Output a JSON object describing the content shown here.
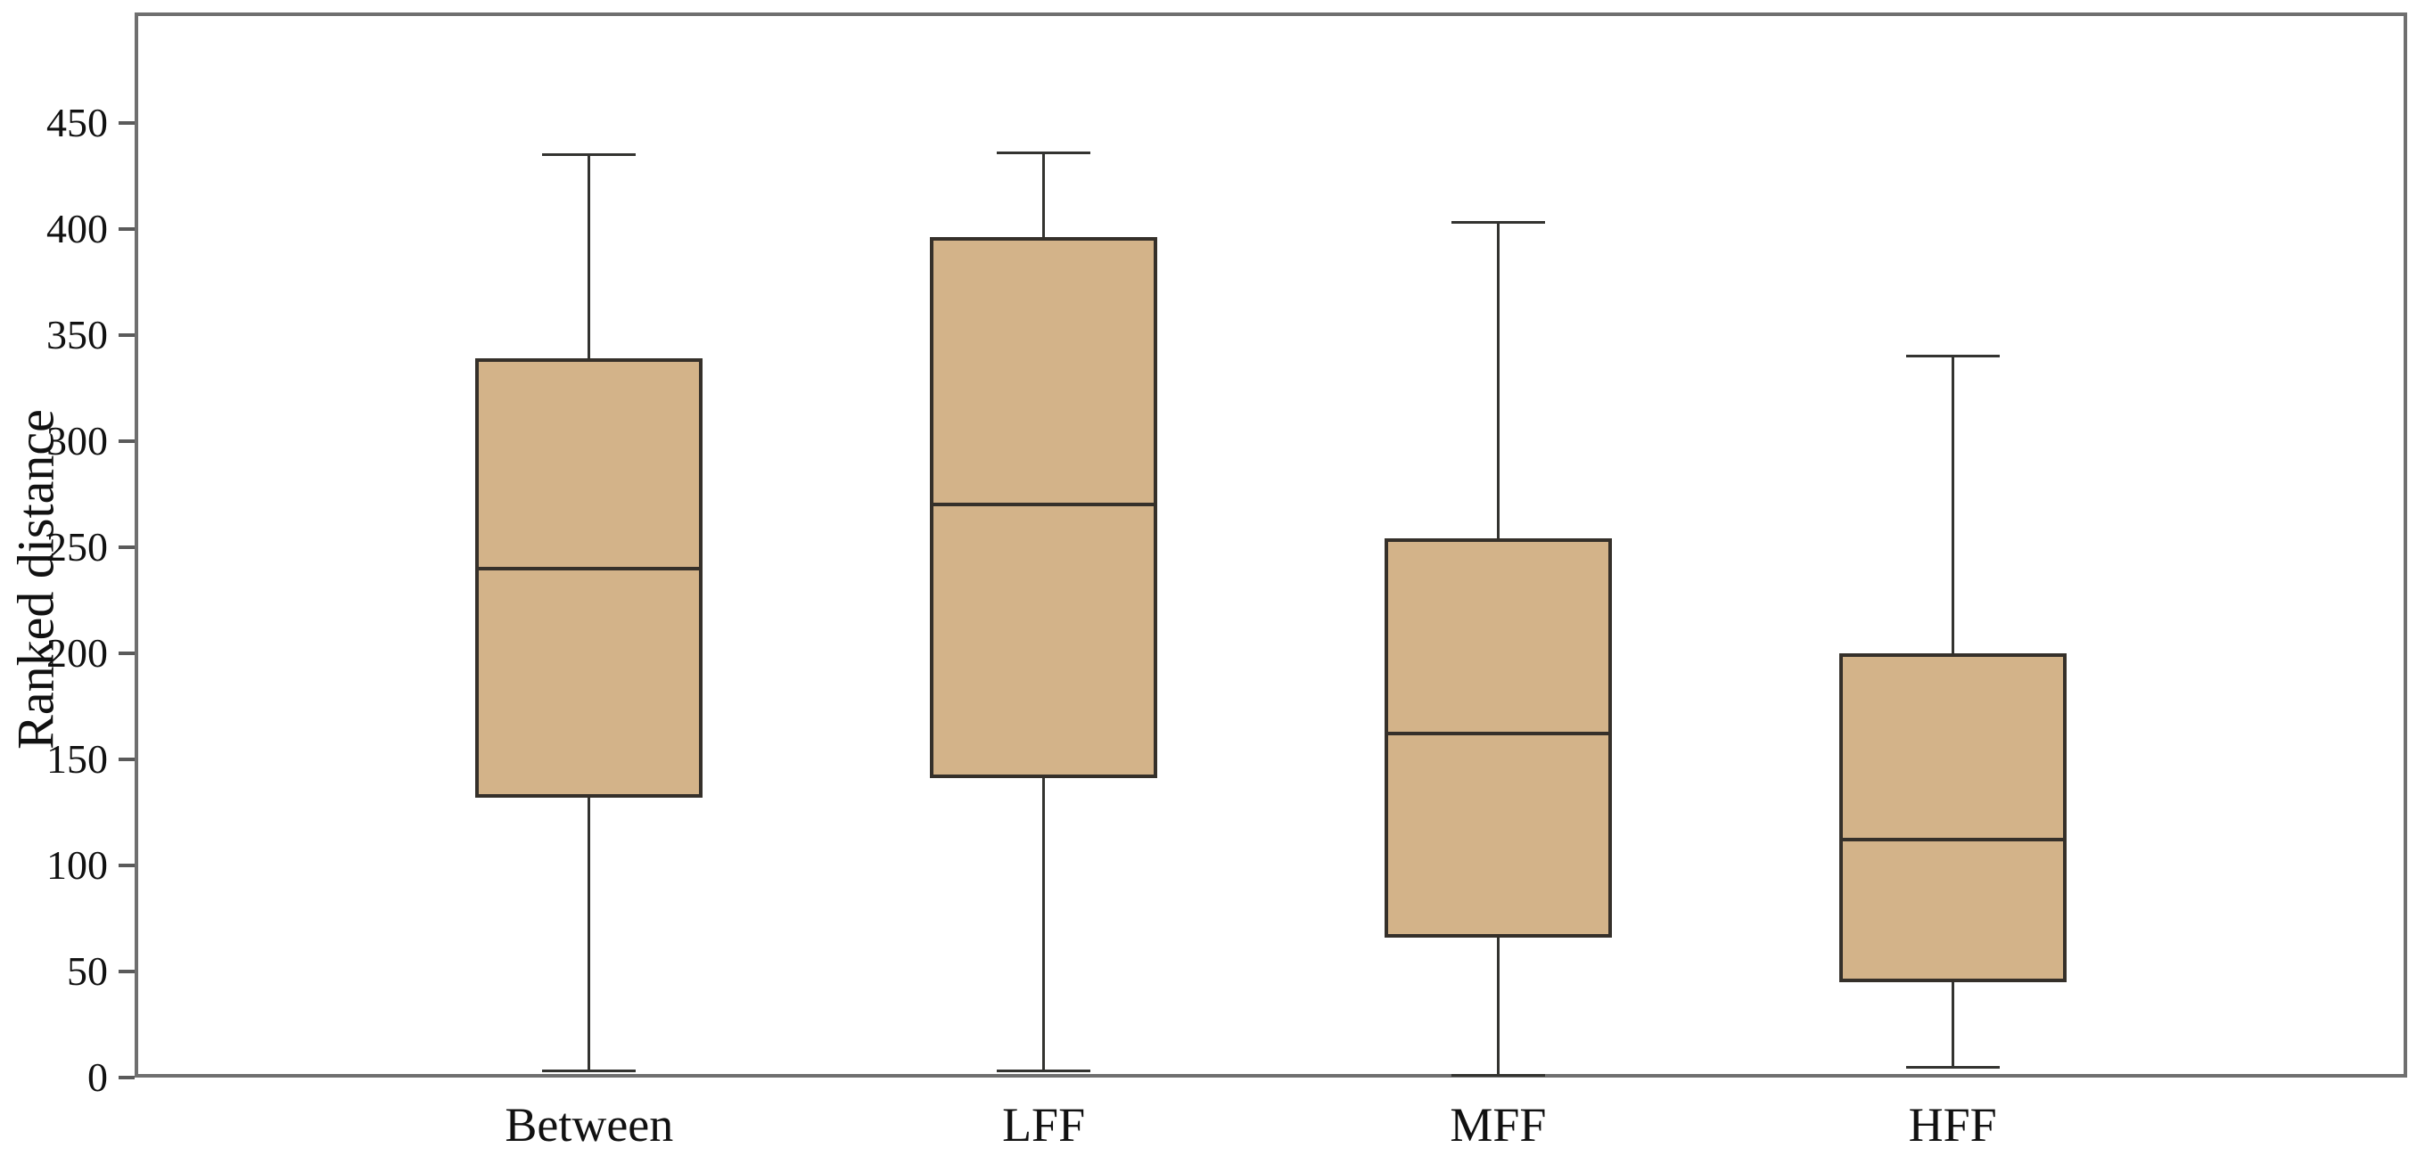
{
  "chart_data": {
    "type": "boxplot",
    "title": "",
    "ylabel": "Ranked distance",
    "xlabel": "",
    "categories": [
      "Between",
      "LFF",
      "MFF",
      "HFF"
    ],
    "yticks": [
      0,
      50,
      100,
      150,
      200,
      250,
      300,
      350,
      400,
      450
    ],
    "ylim": [
      0,
      502
    ],
    "grid": false,
    "legend_position": "none",
    "series": [
      {
        "name": "Between",
        "min": 3,
        "q1": 132,
        "median": 240,
        "q3": 339,
        "max": 435
      },
      {
        "name": "LFF",
        "min": 3,
        "q1": 141,
        "median": 270,
        "q3": 396,
        "max": 436
      },
      {
        "name": "MFF",
        "min": 1,
        "q1": 66,
        "median": 162,
        "q3": 254,
        "max": 403
      },
      {
        "name": "HFF",
        "min": 5,
        "q1": 45,
        "median": 112,
        "q3": 200,
        "max": 340
      }
    ],
    "colors": {
      "box_fill": "#d3b389",
      "box_border": "#35302a",
      "median_line": "#35302a",
      "whisker": "#333330",
      "frame": "#6f6f6f",
      "tick_label": "#111111",
      "background": "#ffffff"
    }
  }
}
